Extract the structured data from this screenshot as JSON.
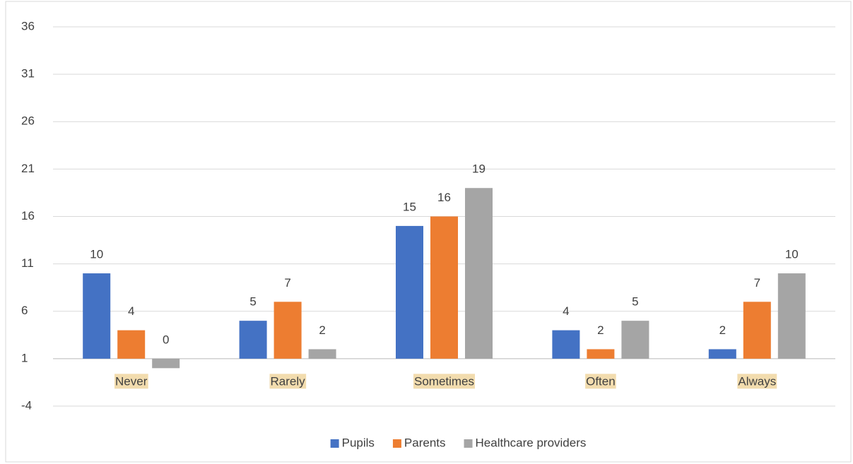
{
  "chart_data": {
    "type": "bar",
    "categories": [
      "Never",
      "Rarely",
      "Sometimes",
      "Often",
      "Always"
    ],
    "series": [
      {
        "name": "Pupils",
        "color": "#4472c4",
        "values": [
          10,
          5,
          15,
          4,
          2
        ]
      },
      {
        "name": "Parents",
        "color": "#ed7d31",
        "values": [
          4,
          7,
          16,
          2,
          7
        ]
      },
      {
        "name": "Healthcare providers",
        "color": "#a5a5a5",
        "values": [
          0,
          2,
          19,
          5,
          10
        ]
      }
    ],
    "ylim": [
      -4,
      36
    ],
    "yticks": [
      -4,
      1,
      6,
      11,
      16,
      21,
      26,
      31,
      36
    ],
    "x_axis_at": 1,
    "grid": true,
    "legend": "bottom"
  }
}
